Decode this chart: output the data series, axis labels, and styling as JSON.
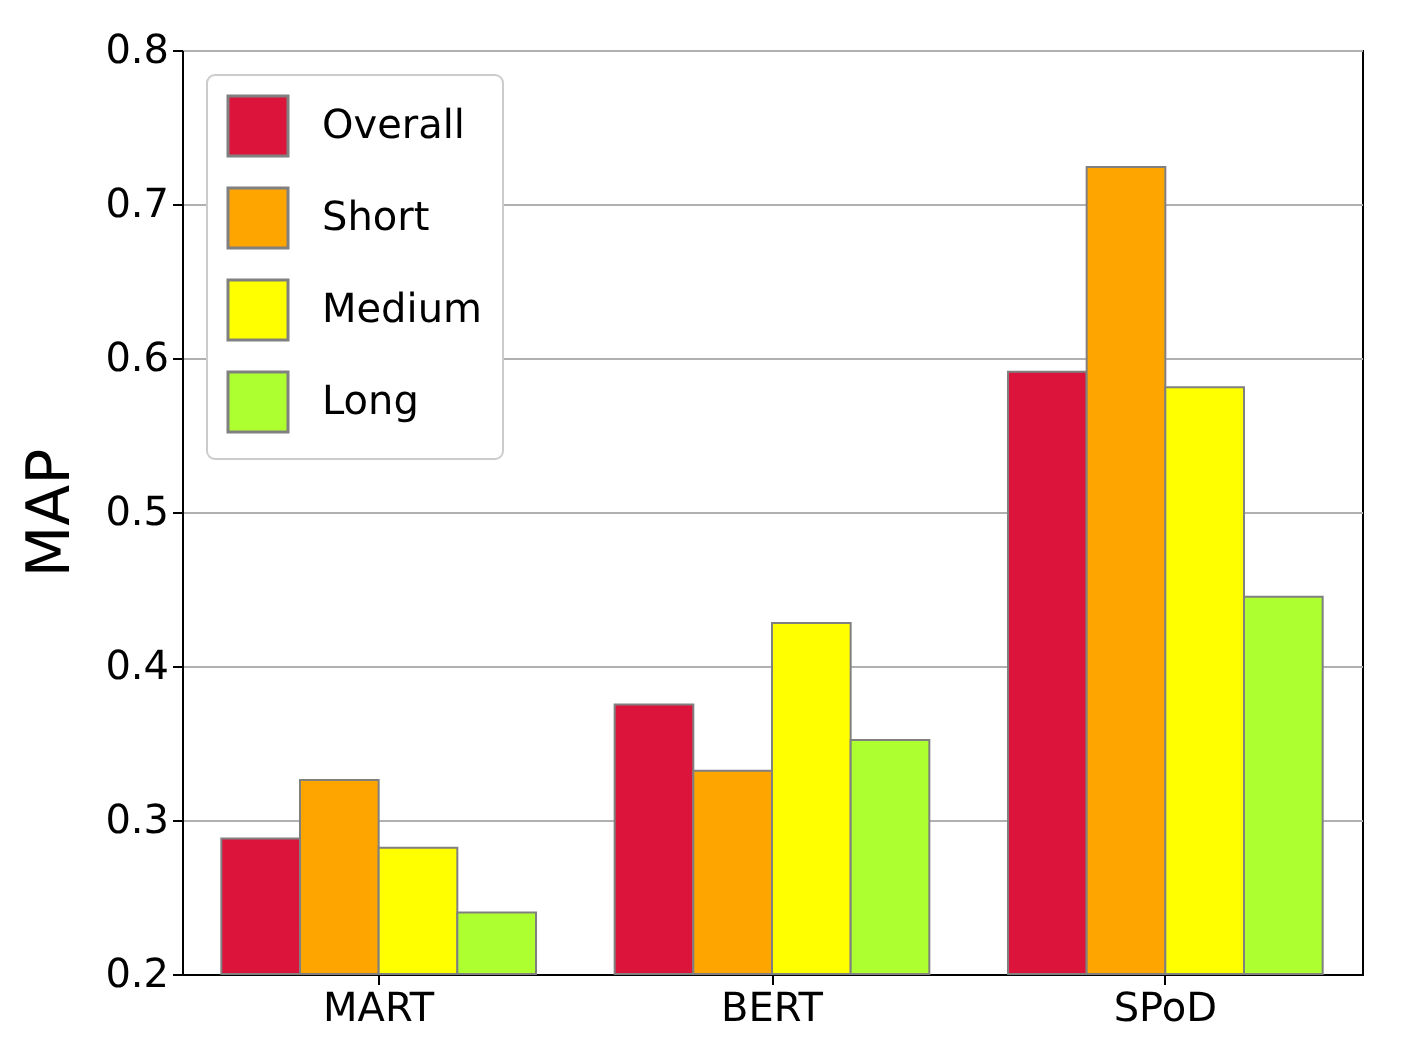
{
  "chart_data": {
    "type": "bar",
    "ylabel": "MAP",
    "categories": [
      "MART",
      "BERT",
      "SPoD"
    ],
    "series": [
      {
        "name": "Overall",
        "color": "#dc143c",
        "values": [
          0.288,
          0.375,
          0.591
        ]
      },
      {
        "name": "Short",
        "color": "#ffa500",
        "values": [
          0.326,
          0.332,
          0.724
        ]
      },
      {
        "name": "Medium",
        "color": "#ffff00",
        "values": [
          0.282,
          0.428,
          0.581
        ]
      },
      {
        "name": "Long",
        "color": "#adff2f",
        "values": [
          0.24,
          0.352,
          0.445
        ]
      }
    ],
    "ylim": [
      0.2,
      0.8
    ],
    "yticks": [
      0.2,
      0.3,
      0.4,
      0.5,
      0.6,
      0.7,
      0.8
    ],
    "grid": "y",
    "legend": "top left"
  }
}
